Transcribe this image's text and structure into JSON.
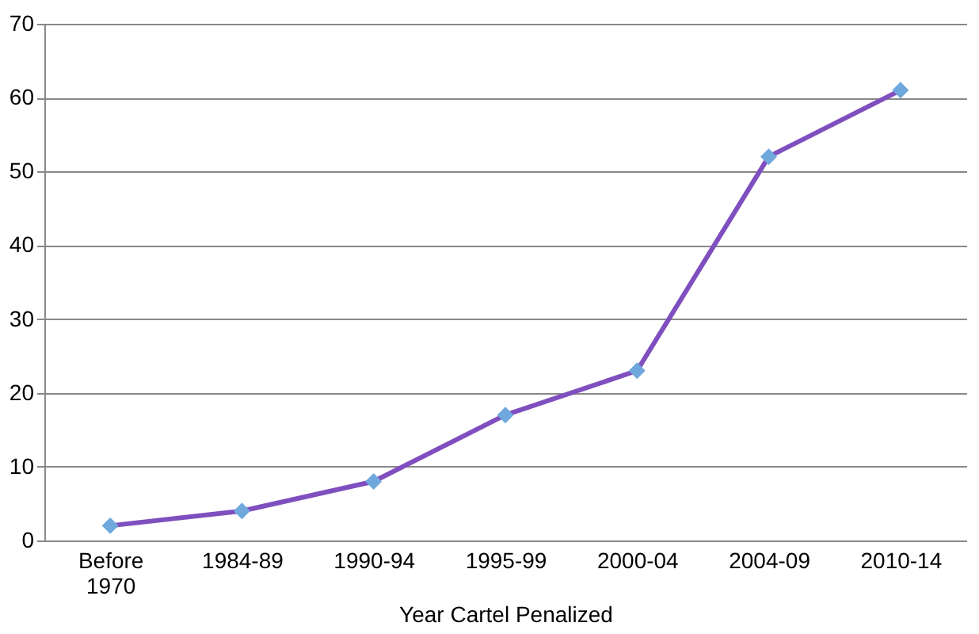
{
  "chart_data": {
    "type": "line",
    "xlabel": "Year Cartel Penalized",
    "categories": [
      "Before 1970",
      "1984-89",
      "1990-94",
      "1995-99",
      "2000-04",
      "2004-09",
      "2010-14"
    ],
    "series": [
      {
        "color": "#7f4fbf",
        "values": [
          2,
          4,
          8,
          17,
          23,
          52,
          61
        ]
      }
    ],
    "ylim": [
      0,
      70
    ],
    "yticks": [
      0,
      10,
      20,
      30,
      40,
      50,
      60,
      70
    ],
    "grid": "y",
    "marker": "diamond",
    "line_style": "solid"
  }
}
